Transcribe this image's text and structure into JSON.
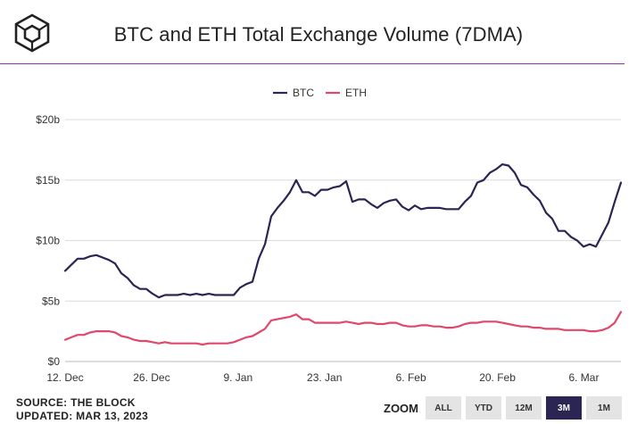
{
  "header": {
    "title": "BTC and ETH Total Exchange Volume (7DMA)"
  },
  "footer": {
    "source": "SOURCE: THE BLOCK",
    "updated": "UPDATED: MAR 13, 2023"
  },
  "zoom": {
    "label": "ZOOM",
    "buttons": [
      "ALL",
      "YTD",
      "12M",
      "3M",
      "1M"
    ],
    "active": "3M"
  },
  "colors": {
    "btc": "#2a2552",
    "eth": "#e0476b",
    "accent_rule": "#8e2fb3",
    "grid": "#dcdcdc"
  },
  "chart_data": {
    "type": "line",
    "title": "BTC and ETH Total Exchange Volume (7DMA)",
    "x_start": "2022-12-12",
    "x_end": "2023-03-12",
    "x_ticks": [
      "12. Dec",
      "26. Dec",
      "9. Jan",
      "23. Jan",
      "6. Feb",
      "20. Feb",
      "6. Mar"
    ],
    "y_ticks": [
      "$0",
      "$5b",
      "$10b",
      "$15b",
      "$20b"
    ],
    "ylim": [
      0,
      20
    ],
    "y_unit": "billion USD",
    "grid": true,
    "legend_position": "top",
    "series": [
      {
        "name": "BTC",
        "color": "#2a2552",
        "values": [
          7.5,
          8.0,
          8.5,
          8.5,
          8.7,
          8.8,
          8.6,
          8.4,
          8.1,
          7.3,
          6.9,
          6.3,
          6.0,
          6.0,
          5.6,
          5.3,
          5.5,
          5.5,
          5.5,
          5.6,
          5.5,
          5.6,
          5.5,
          5.6,
          5.5,
          5.5,
          5.5,
          5.5,
          6.1,
          6.4,
          6.6,
          8.5,
          9.7,
          12.0,
          12.7,
          13.3,
          14.0,
          15.0,
          14.0,
          14.0,
          13.7,
          14.2,
          14.2,
          14.4,
          14.5,
          14.9,
          13.2,
          13.4,
          13.4,
          13.0,
          12.7,
          13.1,
          13.3,
          13.4,
          12.8,
          12.5,
          12.9,
          12.6,
          12.7,
          12.7,
          12.7,
          12.6,
          12.6,
          12.6,
          13.2,
          13.7,
          14.8,
          15.0,
          15.6,
          15.9,
          16.3,
          16.2,
          15.6,
          14.6,
          14.4,
          13.8,
          13.3,
          12.3,
          11.8,
          10.8,
          10.8,
          10.3,
          10.0,
          9.5,
          9.7,
          9.5,
          10.5,
          11.5,
          13.2,
          14.8
        ]
      },
      {
        "name": "ETH",
        "color": "#e0476b",
        "values": [
          1.8,
          2.0,
          2.2,
          2.2,
          2.4,
          2.5,
          2.5,
          2.5,
          2.4,
          2.1,
          2.0,
          1.8,
          1.7,
          1.7,
          1.6,
          1.5,
          1.6,
          1.5,
          1.5,
          1.5,
          1.5,
          1.5,
          1.4,
          1.5,
          1.5,
          1.5,
          1.5,
          1.6,
          1.8,
          2.0,
          2.1,
          2.4,
          2.7,
          3.4,
          3.5,
          3.6,
          3.7,
          3.9,
          3.5,
          3.5,
          3.2,
          3.2,
          3.2,
          3.2,
          3.2,
          3.3,
          3.2,
          3.1,
          3.2,
          3.2,
          3.1,
          3.1,
          3.2,
          3.2,
          3.0,
          2.9,
          2.9,
          3.0,
          3.0,
          2.9,
          2.9,
          2.8,
          2.8,
          2.9,
          3.1,
          3.2,
          3.2,
          3.3,
          3.3,
          3.3,
          3.2,
          3.1,
          3.0,
          2.9,
          2.9,
          2.8,
          2.8,
          2.7,
          2.7,
          2.7,
          2.6,
          2.6,
          2.6,
          2.6,
          2.5,
          2.5,
          2.6,
          2.8,
          3.2,
          4.1
        ]
      }
    ]
  }
}
